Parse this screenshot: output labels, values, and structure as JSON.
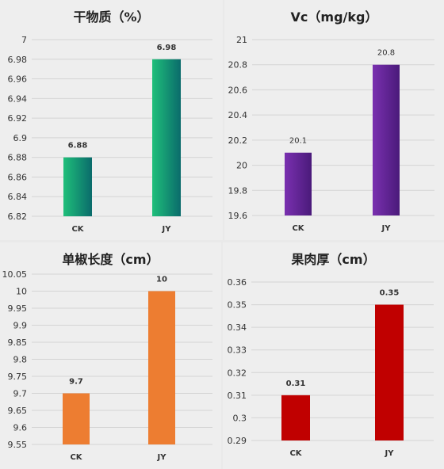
{
  "chart_data": [
    {
      "id": "c1",
      "type": "bar",
      "title": "干物质（%）",
      "categories": [
        "CK",
        "JY"
      ],
      "values": [
        6.88,
        6.98
      ],
      "data_labels": [
        "6.88",
        "6.98"
      ],
      "ylim": [
        6.82,
        7.0
      ],
      "yticks": [
        "6.82",
        "6.84",
        "6.86",
        "6.88",
        "6.9",
        "6.92",
        "6.94",
        "6.96",
        "6.98",
        "7"
      ],
      "colors": [
        "#1fbf7a",
        "#0a6b6b"
      ],
      "grid": true
    },
    {
      "id": "c2",
      "type": "bar",
      "title": "Vc（mg/kg）",
      "categories": [
        "CK",
        "JY"
      ],
      "values": [
        20.1,
        20.8
      ],
      "data_labels": [
        "20.1",
        "20.8"
      ],
      "ylim": [
        19.6,
        21.0
      ],
      "yticks": [
        "19.6",
        "19.8",
        "20",
        "20.2",
        "20.4",
        "20.6",
        "20.8",
        "21"
      ],
      "colors": [
        "#7a30b0",
        "#4a1a7a"
      ],
      "grid": true
    },
    {
      "id": "c3",
      "type": "bar",
      "title": "单椒长度（cm）",
      "categories": [
        "CK",
        "JY"
      ],
      "values": [
        9.7,
        10
      ],
      "data_labels": [
        "9.7",
        "10"
      ],
      "ylim": [
        9.55,
        10.05
      ],
      "yticks": [
        "9.55",
        "9.6",
        "9.65",
        "9.7",
        "9.75",
        "9.8",
        "9.85",
        "9.9",
        "9.95",
        "10",
        "10.05"
      ],
      "colors": [
        "#ed7d31",
        "#ed7d31"
      ],
      "grid": true
    },
    {
      "id": "c4",
      "type": "bar",
      "title": "果肉厚（cm）",
      "categories": [
        "CK",
        "JY"
      ],
      "values": [
        0.31,
        0.35
      ],
      "data_labels": [
        "0.31",
        "0.35"
      ],
      "ylim": [
        0.29,
        0.36
      ],
      "yticks": [
        "0.29",
        "0.3",
        "0.31",
        "0.32",
        "0.33",
        "0.34",
        "0.35",
        "0.36"
      ],
      "colors": [
        "#c00000",
        "#c00000"
      ],
      "grid": true
    }
  ]
}
